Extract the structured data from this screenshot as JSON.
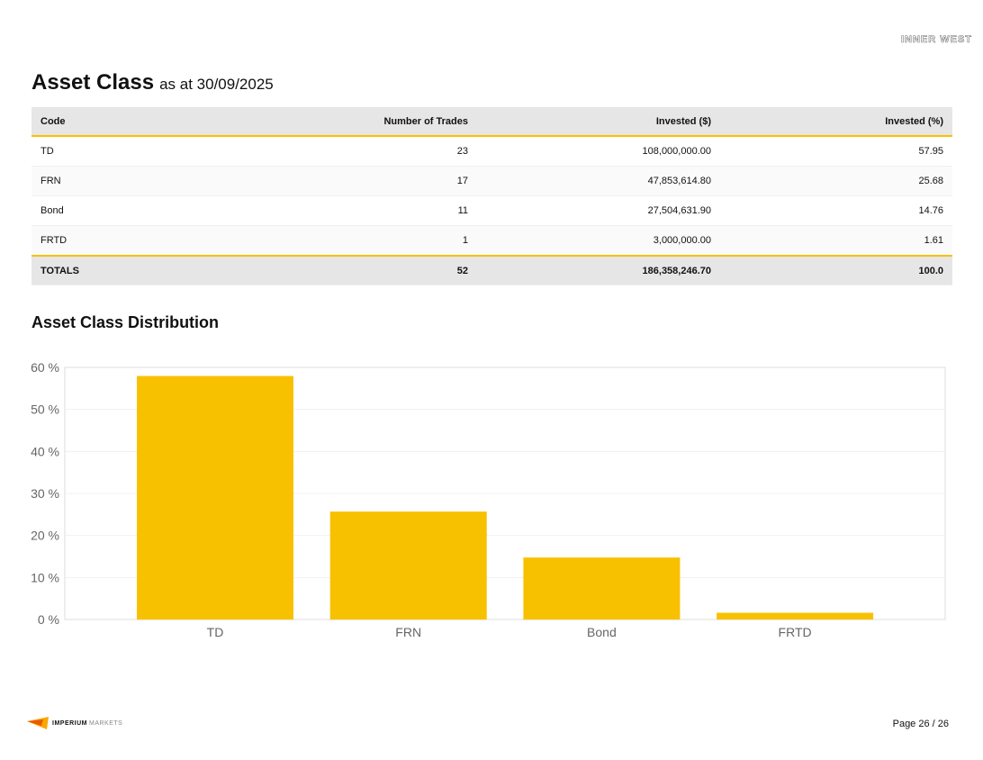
{
  "header": {
    "logo_text": "INNER WEST",
    "title": "Asset Class",
    "subtitle": "as at 30/09/2025"
  },
  "table": {
    "columns": [
      "Code",
      "Number of Trades",
      "Invested ($)",
      "Invested (%)"
    ],
    "rows": [
      {
        "code": "TD",
        "trades": "23",
        "invested": "108,000,000.00",
        "pct": "57.95"
      },
      {
        "code": "FRN",
        "trades": "17",
        "invested": "47,853,614.80",
        "pct": "25.68"
      },
      {
        "code": "Bond",
        "trades": "11",
        "invested": "27,504,631.90",
        "pct": "14.76"
      },
      {
        "code": "FRTD",
        "trades": "1",
        "invested": "3,000,000.00",
        "pct": "1.61"
      }
    ],
    "totals": {
      "code": "TOTALS",
      "trades": "52",
      "invested": "186,358,246.70",
      "pct": "100.0"
    }
  },
  "chart_title": "Asset Class Distribution",
  "chart_data": {
    "type": "bar",
    "categories": [
      "TD",
      "FRN",
      "Bond",
      "FRTD"
    ],
    "values": [
      57.95,
      25.68,
      14.76,
      1.61
    ],
    "ylim": [
      0,
      60
    ],
    "yticks": [
      "0 %",
      "10 %",
      "20 %",
      "30 %",
      "40 %",
      "50 %",
      "60 %"
    ],
    "grid": true,
    "color": "#f8c100"
  },
  "footer": {
    "brand_bold": "IMPERIUM",
    "brand_light": "MARKETS",
    "page": "Page 26 / 26"
  }
}
